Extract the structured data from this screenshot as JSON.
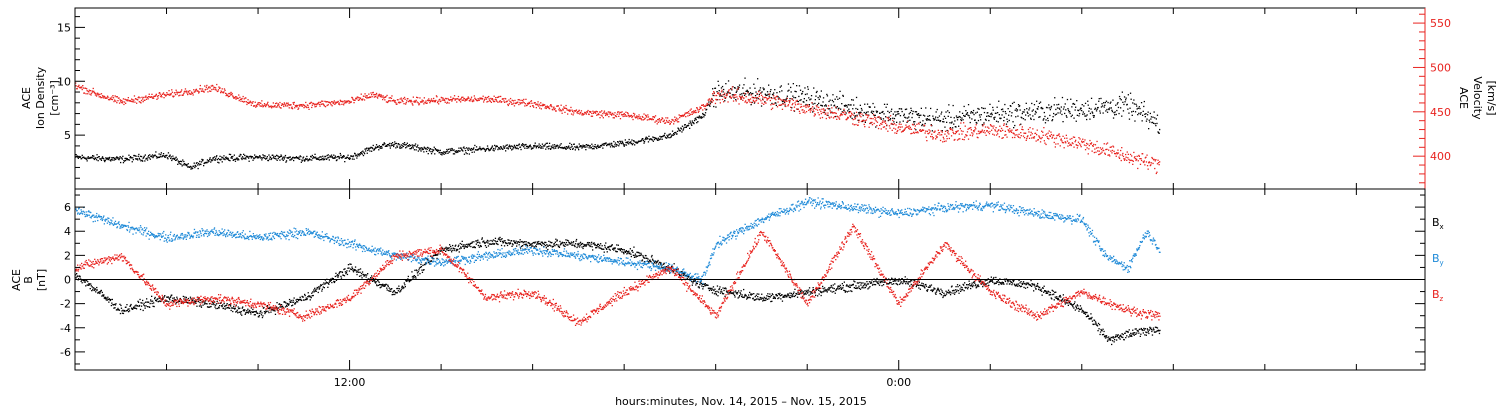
{
  "colors": {
    "black": "#000000",
    "red": "#e8231f",
    "blue": "#1f8ad8"
  },
  "x_axis": {
    "title": "hours:minutes, Nov. 14, 2015 – Nov. 15, 2015",
    "tick_labels": [
      "12:00",
      "0:00"
    ]
  },
  "chart_data": [
    {
      "type": "scatter",
      "panel": "top",
      "left_ylabel_lines": [
        "ACE",
        "Ion Density",
        "[cm⁻³]"
      ],
      "right_ylabel_lines": [
        "ACE",
        "Velocity",
        "[km/s]"
      ],
      "left_ylim": [
        0,
        16.8
      ],
      "right_ylim": [
        363,
        567
      ],
      "left_yticks": [
        5,
        10,
        15
      ],
      "right_yticks": [
        400,
        450,
        500,
        550
      ],
      "x_unit": "hours since 2015-11-14 00:00 (shown as hh:mm)",
      "xlim": [
        6,
        35.5
      ],
      "data_end": 29.7,
      "series": [
        {
          "axis": "left",
          "color": "#000000",
          "points": [
            [
              6.0,
              3.0
            ],
            [
              7.0,
              2.8
            ],
            [
              8.0,
              3.2
            ],
            [
              8.5,
              2.0
            ],
            [
              9.0,
              2.9
            ],
            [
              10.0,
              3.0
            ],
            [
              11.0,
              2.9
            ],
            [
              12.0,
              3.0
            ],
            [
              12.6,
              4.0
            ],
            [
              13.0,
              4.2
            ],
            [
              14.0,
              3.5
            ],
            [
              15.0,
              3.8
            ],
            [
              16.0,
              4.0
            ],
            [
              17.0,
              3.9
            ],
            [
              18.0,
              4.3
            ],
            [
              19.0,
              5.0
            ],
            [
              19.7,
              6.8
            ],
            [
              20.0,
              9.0
            ],
            [
              21.0,
              9.0
            ],
            [
              22.0,
              8.5
            ],
            [
              23.0,
              7.5
            ],
            [
              24.0,
              6.8
            ],
            [
              25.0,
              6.5
            ],
            [
              26.0,
              7.0
            ],
            [
              27.0,
              7.2
            ],
            [
              28.0,
              7.5
            ],
            [
              29.0,
              7.8
            ],
            [
              29.7,
              6.0
            ]
          ]
        },
        {
          "axis": "right",
          "color": "#e8231f",
          "points": [
            [
              6.0,
              480
            ],
            [
              6.5,
              470
            ],
            [
              7.0,
              462
            ],
            [
              8.0,
              470
            ],
            [
              9.0,
              478
            ],
            [
              9.5,
              468
            ],
            [
              10.0,
              458
            ],
            [
              11.0,
              458
            ],
            [
              12.0,
              462
            ],
            [
              12.5,
              470
            ],
            [
              13.0,
              462
            ],
            [
              14.0,
              464
            ],
            [
              15.0,
              465
            ],
            [
              16.0,
              460
            ],
            [
              17.0,
              450
            ],
            [
              18.0,
              447
            ],
            [
              19.0,
              440
            ],
            [
              19.7,
              455
            ],
            [
              20.0,
              470
            ],
            [
              21.0,
              465
            ],
            [
              22.0,
              455
            ],
            [
              23.0,
              445
            ],
            [
              24.0,
              433
            ],
            [
              25.0,
              425
            ],
            [
              26.0,
              430
            ],
            [
              27.0,
              425
            ],
            [
              28.0,
              415
            ],
            [
              29.0,
              400
            ],
            [
              29.7,
              390
            ]
          ]
        }
      ]
    },
    {
      "type": "scatter",
      "panel": "bottom",
      "left_ylabel_lines": [
        "ACE",
        "B",
        "[nT]"
      ],
      "ylim": [
        -7.5,
        7.5
      ],
      "yticks": [
        -6,
        -4,
        -2,
        0,
        2,
        4,
        6
      ],
      "zero_line": true,
      "x_unit": "hours since 2015-11-14 00:00 (shown as hh:mm)",
      "xlim": [
        6,
        35.5
      ],
      "data_end": 29.7,
      "series": [
        {
          "name": "Bx",
          "label_main": "B",
          "label_sub": "x",
          "color": "#000000",
          "points": [
            [
              6.0,
              0.5
            ],
            [
              7.0,
              -2.5
            ],
            [
              8.0,
              -1.5
            ],
            [
              9.0,
              -2.0
            ],
            [
              10.0,
              -2.8
            ],
            [
              11.0,
              -1.5
            ],
            [
              12.0,
              1.0
            ],
            [
              13.0,
              -1.0
            ],
            [
              14.0,
              2.5
            ],
            [
              15.0,
              3.2
            ],
            [
              16.0,
              3.0
            ],
            [
              17.0,
              3.0
            ],
            [
              18.0,
              2.5
            ],
            [
              19.0,
              1.0
            ],
            [
              19.7,
              -0.5
            ],
            [
              20.0,
              -0.8
            ],
            [
              21.0,
              -1.5
            ],
            [
              22.0,
              -1.0
            ],
            [
              23.0,
              -0.5
            ],
            [
              24.0,
              0.0
            ],
            [
              25.0,
              -1.0
            ],
            [
              26.0,
              0.0
            ],
            [
              27.0,
              -0.5
            ],
            [
              28.0,
              -2.5
            ],
            [
              28.6,
              -5.0
            ],
            [
              29.0,
              -4.5
            ],
            [
              29.7,
              -4.0
            ]
          ]
        },
        {
          "name": "By",
          "label_main": "B",
          "label_sub": "y",
          "color": "#1f8ad8",
          "points": [
            [
              6.0,
              5.8
            ],
            [
              7.0,
              4.5
            ],
            [
              8.0,
              3.5
            ],
            [
              9.0,
              4.0
            ],
            [
              10.0,
              3.5
            ],
            [
              11.0,
              4.0
            ],
            [
              12.0,
              3.0
            ],
            [
              13.0,
              2.0
            ],
            [
              14.0,
              1.5
            ],
            [
              15.0,
              2.0
            ],
            [
              16.0,
              2.5
            ],
            [
              17.0,
              2.0
            ],
            [
              18.0,
              1.5
            ],
            [
              19.0,
              1.0
            ],
            [
              19.7,
              0.0
            ],
            [
              20.0,
              3.0
            ],
            [
              21.0,
              5.0
            ],
            [
              22.0,
              6.5
            ],
            [
              23.0,
              6.0
            ],
            [
              24.0,
              5.5
            ],
            [
              25.0,
              6.0
            ],
            [
              26.0,
              6.2
            ],
            [
              27.0,
              5.5
            ],
            [
              28.0,
              5.0
            ],
            [
              28.5,
              2.0
            ],
            [
              29.0,
              1.0
            ],
            [
              29.4,
              4.0
            ],
            [
              29.7,
              2.5
            ]
          ]
        },
        {
          "name": "Bz",
          "label_main": "B",
          "label_sub": "z",
          "color": "#e8231f",
          "points": [
            [
              6.0,
              1.0
            ],
            [
              7.0,
              2.0
            ],
            [
              8.0,
              -2.0
            ],
            [
              9.0,
              -1.5
            ],
            [
              10.0,
              -2.0
            ],
            [
              11.0,
              -3.0
            ],
            [
              12.0,
              -1.5
            ],
            [
              13.0,
              2.0
            ],
            [
              14.0,
              2.5
            ],
            [
              15.0,
              -1.5
            ],
            [
              16.0,
              -1.0
            ],
            [
              17.0,
              -3.5
            ],
            [
              18.0,
              -1.0
            ],
            [
              19.0,
              1.0
            ],
            [
              20.0,
              -3.0
            ],
            [
              21.0,
              4.0
            ],
            [
              22.0,
              -2.0
            ],
            [
              23.0,
              4.5
            ],
            [
              24.0,
              -2.0
            ],
            [
              25.0,
              3.0
            ],
            [
              26.0,
              -1.0
            ],
            [
              27.0,
              -3.0
            ],
            [
              28.0,
              -1.0
            ],
            [
              29.0,
              -2.5
            ],
            [
              29.7,
              -3.0
            ]
          ]
        }
      ]
    }
  ]
}
